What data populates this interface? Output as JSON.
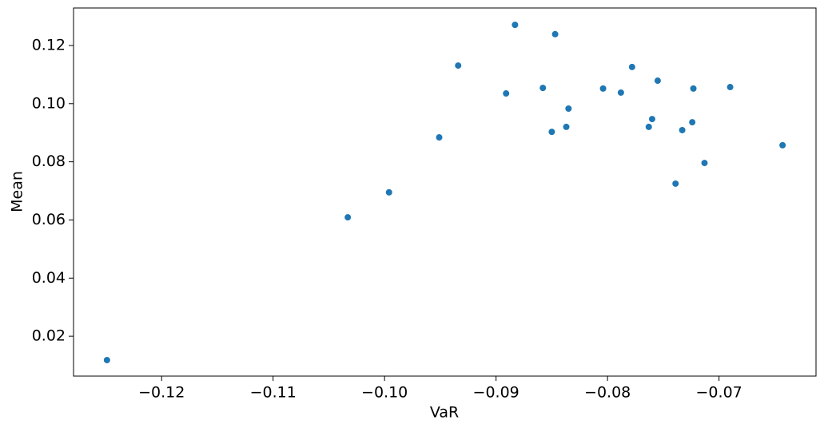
{
  "chart_data": {
    "type": "scatter",
    "x_label": "VaR",
    "y_label": "Mean",
    "color": "#1f77b4",
    "x": [
      -0.1249,
      -0.1033,
      -0.0996,
      -0.0951,
      -0.0934,
      -0.0891,
      -0.0883,
      -0.0858,
      -0.085,
      -0.0847,
      -0.0837,
      -0.0835,
      -0.0804,
      -0.0788,
      -0.0778,
      -0.0763,
      -0.076,
      -0.0755,
      -0.0739,
      -0.0733,
      -0.0724,
      -0.0723,
      -0.0713,
      -0.069,
      -0.0643
    ],
    "values": [
      0.0118,
      0.0609,
      0.0695,
      0.0884,
      0.1131,
      0.1035,
      0.1271,
      0.1054,
      0.0903,
      0.1239,
      0.092,
      0.0983,
      0.1052,
      0.1038,
      0.1126,
      0.092,
      0.0947,
      0.1079,
      0.0725,
      0.0909,
      0.0936,
      0.1052,
      0.0796,
      0.1057,
      0.0857
    ],
    "xlim": [
      -0.1279,
      -0.0613
    ],
    "ylim": [
      0.0063,
      0.1329
    ],
    "xticks": [
      {
        "value": -0.12,
        "label": "−0.12"
      },
      {
        "value": -0.11,
        "label": "−0.11"
      },
      {
        "value": -0.1,
        "label": "−0.10"
      },
      {
        "value": -0.09,
        "label": "−0.09"
      },
      {
        "value": -0.08,
        "label": "−0.08"
      },
      {
        "value": -0.07,
        "label": "−0.07"
      }
    ],
    "yticks": [
      0.02,
      0.04,
      0.06,
      0.08,
      {
        "value": 0.1,
        "label": "0.10"
      },
      0.12
    ],
    "grid": false
  }
}
